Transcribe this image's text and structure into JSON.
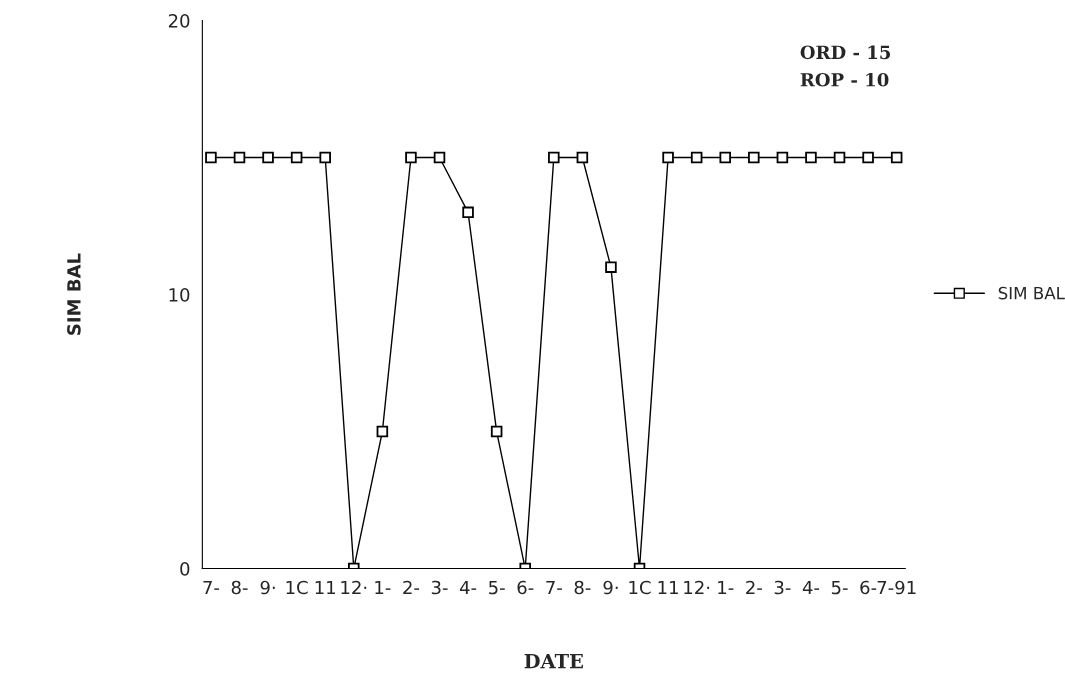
{
  "chart_data": {
    "type": "line",
    "xlabel": "DATE",
    "ylabel": "SIM BAL",
    "categories": [
      "7-",
      "8-",
      "9·",
      "1C",
      "11",
      "12·",
      "1-",
      "2-",
      "3-",
      "4-",
      "5-",
      "6-",
      "7-",
      "8-",
      "9·",
      "1C",
      "11",
      "12·",
      "1-",
      "2-",
      "3-",
      "4-",
      "5-",
      "6-",
      "7-91"
    ],
    "series": [
      {
        "name": "SIM BAL",
        "color": "#000000",
        "values": [
          15,
          15,
          15,
          15,
          15,
          0,
          5,
          15,
          15,
          13,
          5,
          0,
          15,
          15,
          11,
          0,
          15,
          15,
          15,
          15,
          15,
          15,
          15,
          15,
          15
        ]
      }
    ],
    "ylim": [
      0,
      20
    ],
    "yticks": [
      0,
      10,
      20
    ],
    "annotations": [
      "ORD - 15",
      "ROP - 10"
    ],
    "marker": "square",
    "line_style": "solid",
    "legend": "right",
    "grid": false
  }
}
